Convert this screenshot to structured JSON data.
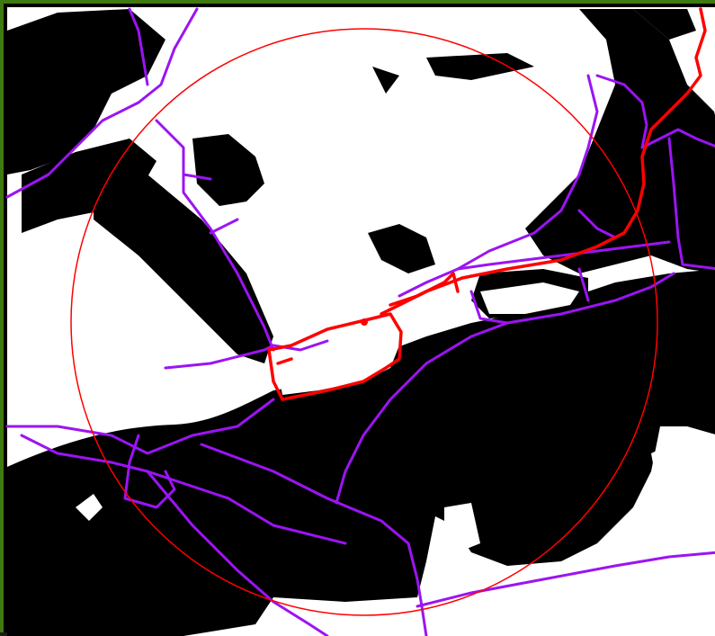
{
  "map": {
    "colors": {
      "frame": "#3f7a10",
      "land": "#ffffff",
      "water": "#000000",
      "path_network": "#9b14f2",
      "highlighted_route": "#ff0000",
      "search_radius": "#ff0000"
    },
    "layers": [
      "land-water-mask",
      "path-network",
      "highlighted-route",
      "search-radius-circle"
    ]
  }
}
